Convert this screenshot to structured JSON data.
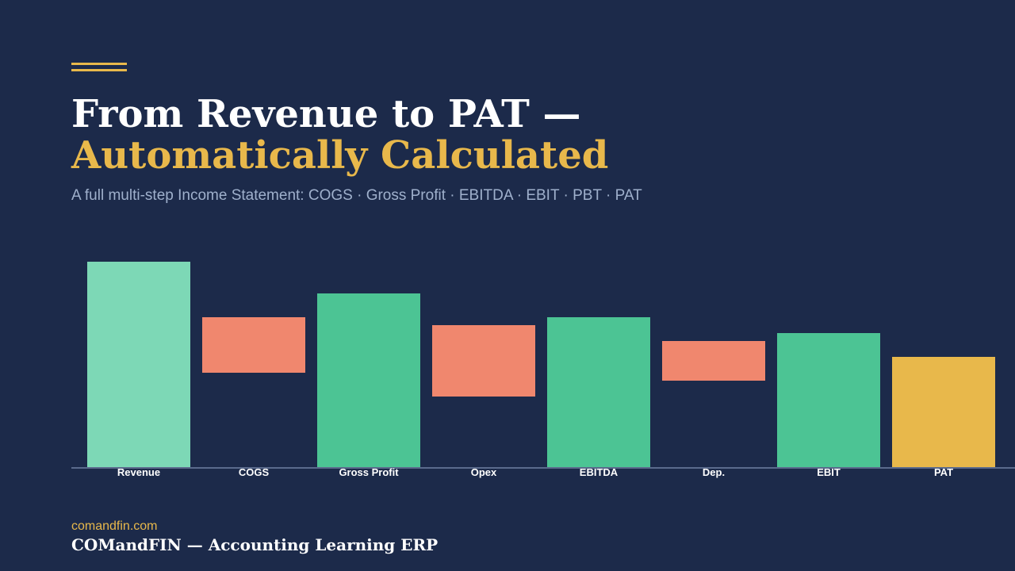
{
  "header": {
    "title_line1": "From Revenue to PAT —",
    "title_line2": "Automatically Calculated",
    "subtitle": "A full multi-step Income Statement: COGS · Gross Profit · EBITDA · EBIT · PBT · PAT"
  },
  "chart_data": {
    "type": "bar",
    "subtype": "waterfall",
    "categories": [
      "Revenue",
      "COGS",
      "Gross Profit",
      "Opex",
      "EBITDA",
      "Dep.",
      "EBIT",
      "PAT"
    ],
    "bars": [
      {
        "label": "Revenue",
        "start": 0,
        "end": 260,
        "kind": "total",
        "color": "#7dd8b6"
      },
      {
        "label": "COGS",
        "start": 120,
        "end": 190,
        "kind": "decrease",
        "color": "#f0876e"
      },
      {
        "label": "Gross Profit",
        "start": 0,
        "end": 220,
        "kind": "subtotal",
        "color": "#4cc494"
      },
      {
        "label": "Opex",
        "start": 90,
        "end": 180,
        "kind": "decrease",
        "color": "#f0876e"
      },
      {
        "label": "EBITDA",
        "start": 0,
        "end": 190,
        "kind": "subtotal",
        "color": "#4cc494"
      },
      {
        "label": "Dep.",
        "start": 110,
        "end": 160,
        "kind": "decrease",
        "color": "#f0876e"
      },
      {
        "label": "EBIT",
        "start": 0,
        "end": 170,
        "kind": "subtotal",
        "color": "#4cc494"
      },
      {
        "label": "PAT",
        "start": 0,
        "end": 140,
        "kind": "final",
        "color": "#e8b84b"
      }
    ],
    "ylim": [
      0,
      260
    ],
    "grid": false,
    "legend": "none"
  },
  "footer": {
    "url": "comandfin.com",
    "brand": "COMandFIN — Accounting Learning ERP"
  }
}
